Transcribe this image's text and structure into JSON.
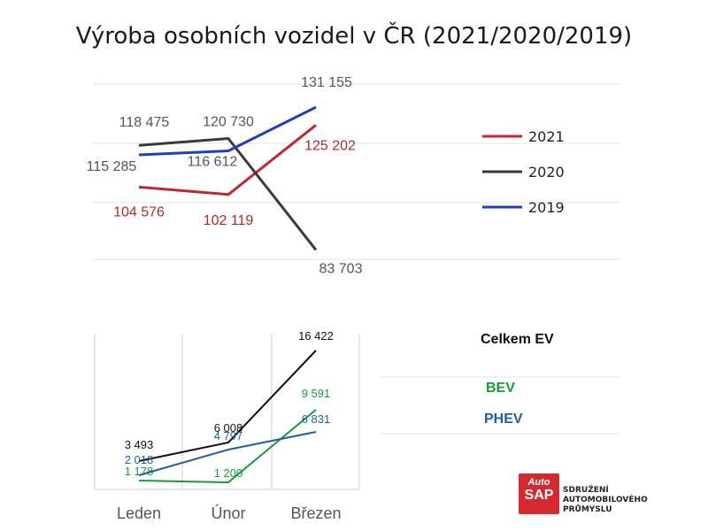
{
  "title": "Výroba osobních vozidel v ČR (2021/2020/2019)",
  "chart_data": [
    {
      "type": "line",
      "x": [
        "Leden",
        "Únor",
        "Březen"
      ],
      "series": [
        {
          "name": "2021",
          "color": "#c0282d",
          "values": [
            104576,
            102119,
            125202
          ],
          "labels": [
            "104 576",
            "102 119",
            "125 202"
          ]
        },
        {
          "name": "2020",
          "color": "#3a3a3a",
          "values": [
            118475,
            120730,
            83703
          ],
          "labels": [
            "118 475",
            "120 730",
            "83 703"
          ]
        },
        {
          "name": "2019",
          "color": "#1f3fbf",
          "values": [
            115285,
            116612,
            131155
          ],
          "labels": [
            "115 285",
            "116 612",
            "131 155"
          ]
        }
      ],
      "legend": "right"
    },
    {
      "type": "line",
      "categories": [
        "Leden",
        "Únor",
        "Březen"
      ],
      "series": [
        {
          "name": "Celkem EV",
          "color": "#111111",
          "values": [
            3493,
            6008,
            16422
          ],
          "labels": [
            "3 493",
            "6 008",
            "16 422"
          ]
        },
        {
          "name": "BEV",
          "color": "#1a9a3a",
          "values": [
            1178,
            1200,
            9591
          ],
          "labels": [
            "1 178",
            "1 200",
            "9 591"
          ]
        },
        {
          "name": "PHEV",
          "color": "#1f5f9f",
          "values": [
            2018,
            4797,
            6831
          ],
          "labels": [
            "2 018",
            "4 797",
            "6 831"
          ]
        }
      ],
      "legend": "right",
      "grid": true
    }
  ],
  "logo": {
    "line1": "Auto",
    "line2": "SAP"
  },
  "org_lines": [
    "SDRUŽENÍ",
    "AUTOMOBILOVÉHO",
    "PRŮMYSLU"
  ]
}
